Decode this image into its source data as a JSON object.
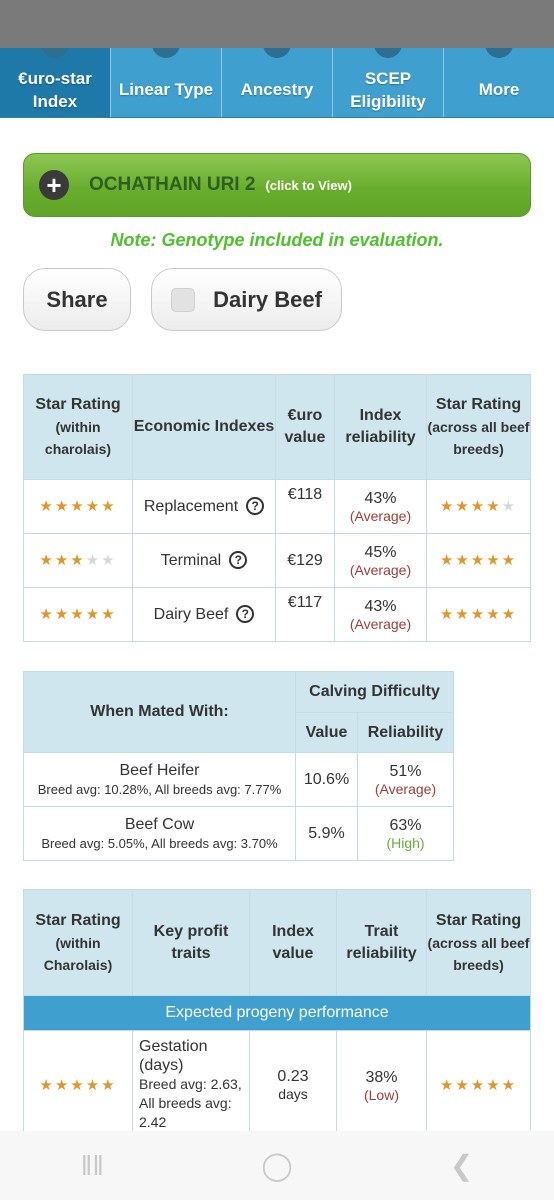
{
  "tabs": [
    {
      "label": "€uro-star Index",
      "active": true
    },
    {
      "label": "Linear Type",
      "active": false
    },
    {
      "label": "Ancestry",
      "active": false
    },
    {
      "label": "SCEP Eligibility",
      "active": false
    },
    {
      "label": "More",
      "active": false
    }
  ],
  "animal": {
    "name": "OCHATHAIN URI 2",
    "click_hint": "(click to View)"
  },
  "note": "Note: Genotype included in evaluation.",
  "buttons": {
    "share": "Share",
    "dairy_beef": "Dairy Beef"
  },
  "index_table": {
    "headers": {
      "star_rating": "Star Rating",
      "star_rating_sub": "(within charolais)",
      "economic": "Economic Indexes",
      "euro_value": "€uro value",
      "reliability": "Index reliability",
      "star_all": "Star Rating",
      "star_all_sub": "(across all beef breeds)"
    },
    "rows": [
      {
        "stars_within": 5,
        "name": "Replacement",
        "value": "€118",
        "reliability": "43%",
        "reliability_label": "(Average)",
        "stars_all": 4
      },
      {
        "stars_within": 3,
        "name": "Terminal",
        "value": "€129",
        "reliability": "45%",
        "reliability_label": "(Average)",
        "stars_all": 5
      },
      {
        "stars_within": 5,
        "name": "Dairy Beef",
        "value": "€117",
        "reliability": "43%",
        "reliability_label": "(Average)",
        "stars_all": 5
      }
    ]
  },
  "calving_table": {
    "headers": {
      "mated_with": "When Mated With:",
      "calving": "Calving Difficulty",
      "value": "Value",
      "reliability": "Reliability"
    },
    "rows": [
      {
        "name": "Beef Heifer",
        "avg": "Breed avg: 10.28%, All breeds avg: 7.77%",
        "value": "10.6%",
        "reliability": "51%",
        "reliability_label": "(Average)",
        "level": "avg"
      },
      {
        "name": "Beef Cow",
        "avg": "Breed avg: 5.05%, All breeds avg: 3.70%",
        "value": "5.9%",
        "reliability": "63%",
        "reliability_label": "(High)",
        "level": "high"
      }
    ]
  },
  "traits_table": {
    "headers": {
      "star_rating": "Star Rating",
      "star_rating_sub": "(within Charolais)",
      "key_traits": "Key profit traits",
      "index_value": "Index value",
      "trait_reliability": "Trait reliability",
      "star_all": "Star Rating",
      "star_all_sub": "(across all beef breeds)"
    },
    "band": "Expected progeny performance",
    "rows": [
      {
        "stars_within": 5,
        "name": "Gestation (days)",
        "avg": "Breed avg: 2.63, All breeds avg: 2.42",
        "value": "0.23",
        "unit": "days",
        "reliability": "38%",
        "reliability_label": "(Low)",
        "stars_all": 5
      }
    ]
  },
  "colors": {
    "tab_bar": "#3f9fcf",
    "tab_active": "#1e78a8",
    "green_bar": "#6aae2f",
    "note_green": "#4ec12c",
    "star": "#e0962b",
    "header_bg": "#d0e6ee"
  },
  "nav_icons": [
    "recent-apps-icon",
    "home-icon",
    "back-icon"
  ]
}
